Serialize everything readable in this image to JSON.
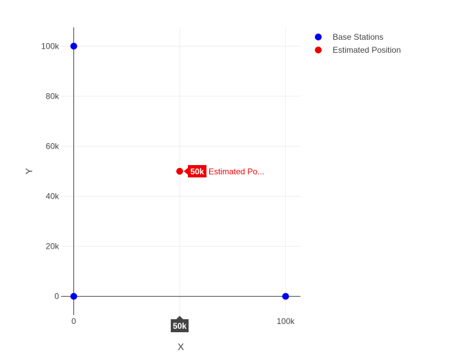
{
  "chart_data": {
    "type": "scatter",
    "xlabel": "X",
    "ylabel": "Y",
    "xlim": [
      -6000,
      107000
    ],
    "ylim": [
      -7500,
      107500
    ],
    "xticks": [
      0,
      100000
    ],
    "xtick_labels": [
      "0",
      "100k"
    ],
    "yticks": [
      0,
      20000,
      40000,
      60000,
      80000,
      100000
    ],
    "ytick_labels": [
      "0",
      "20k",
      "40k",
      "60k",
      "80k",
      "100k"
    ],
    "grid": true,
    "legend_position": "top-right",
    "series": [
      {
        "name": "Base Stations",
        "color": "#0000ee",
        "x": [
          0,
          0,
          100000
        ],
        "y": [
          100000,
          0,
          0
        ]
      },
      {
        "name": "Estimated Position",
        "color": "#ee0000",
        "x": [
          50000
        ],
        "y": [
          50000
        ]
      }
    ],
    "hover": {
      "y_label": "50k",
      "series_label": "Estimated Po...",
      "x_label": "50k",
      "color": "#ee0000",
      "x_label_color": "#444444"
    }
  }
}
